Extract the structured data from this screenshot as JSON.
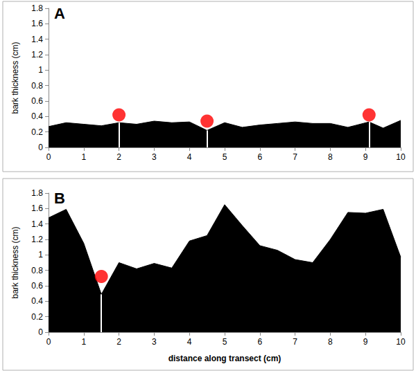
{
  "chart_data": [
    {
      "type": "area",
      "label": "A",
      "y_label": "bark thickness (cm)",
      "color": "#000000",
      "x": [
        0,
        0.5,
        1,
        1.5,
        2,
        2.5,
        3,
        3.5,
        4,
        4.5,
        5,
        5.5,
        6,
        6.5,
        7,
        7.5,
        8,
        8.5,
        9.1,
        9.5,
        10
      ],
      "values": [
        0.27,
        0.32,
        0.3,
        0.28,
        0.32,
        0.3,
        0.34,
        0.32,
        0.33,
        0.22,
        0.32,
        0.26,
        0.29,
        0.31,
        0.33,
        0.31,
        0.31,
        0.26,
        0.33,
        0.25,
        0.35
      ],
      "markers": {
        "color": "#ff0000",
        "x": [
          2,
          4.5,
          9.1
        ],
        "y": [
          0.42,
          0.34,
          0.42
        ]
      },
      "xlim": [
        0,
        10
      ],
      "xticks": [
        0,
        1,
        2,
        3,
        4,
        5,
        6,
        7,
        8,
        9,
        10
      ],
      "ylim": [
        0,
        1.8
      ],
      "yticks": [
        0,
        0.2,
        0.4,
        0.6,
        0.8,
        1,
        1.2,
        1.4,
        1.6,
        1.8
      ],
      "grid": false
    },
    {
      "type": "area",
      "label": "B",
      "y_label": "bark thickness (cm)",
      "x_label": "distance along transect (cm)",
      "color": "#000000",
      "x": [
        0,
        0.5,
        1,
        1.5,
        2,
        2.5,
        3,
        3.5,
        4,
        4.5,
        5,
        5.5,
        6,
        6.5,
        7,
        7.5,
        8,
        8.5,
        9,
        9.5,
        10
      ],
      "values": [
        1.48,
        1.59,
        1.15,
        0.49,
        0.9,
        0.82,
        0.89,
        0.83,
        1.18,
        1.25,
        1.65,
        1.38,
        1.12,
        1.06,
        0.94,
        0.9,
        1.2,
        1.55,
        1.54,
        1.59,
        0.97
      ],
      "markers": {
        "color": "#ff0000",
        "x": [
          1.5
        ],
        "y": [
          0.72
        ]
      },
      "xlim": [
        0,
        10
      ],
      "xticks": [
        0,
        1,
        2,
        3,
        4,
        5,
        6,
        7,
        8,
        9,
        10
      ],
      "ylim": [
        0,
        1.8
      ],
      "yticks": [
        0,
        0.2,
        0.4,
        0.6,
        0.8,
        1,
        1.2,
        1.4,
        1.6,
        1.8
      ],
      "grid": false
    }
  ]
}
